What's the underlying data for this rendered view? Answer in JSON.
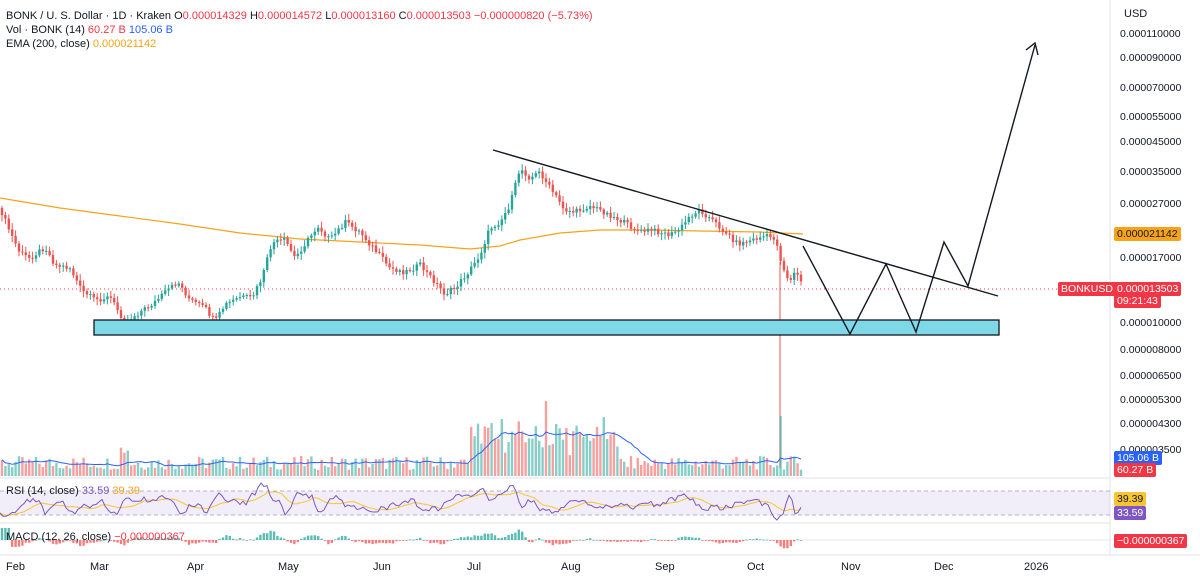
{
  "header": {
    "symbol": "BONK / U. S. Dollar · 1D · Kraken",
    "o_label": "O",
    "o_value": "0.000014329",
    "h_label": "H",
    "h_value": "0.000014572",
    "l_label": "L",
    "l_value": "0.000013160",
    "c_label": "C",
    "c_value": "0.000013503",
    "change": "−0.000000820 (−5.73%)",
    "vol_label": "Vol · BONK (14)",
    "vol_value": "60.27 B",
    "vol_ma_value": "105.06 B",
    "ema_label": "EMA (200, close)",
    "ema_value": "0.000021142"
  },
  "price_axis": {
    "currency": "USD",
    "labels": [
      "0.000110000",
      "0.000090000",
      "0.000070000",
      "0.000055000",
      "0.000045000",
      "0.000035000",
      "0.000027000",
      "0.000017000",
      "0.000010000",
      "0.000008000",
      "0.000006500",
      "0.000005300",
      "0.000004300",
      "0.000003500"
    ]
  },
  "tags": {
    "ema": "0.000021142",
    "symbol": "BONKUSD",
    "price": "0.000013503",
    "countdown": "09:21:43",
    "vol_ma": "105.06 B",
    "vol": "60.27 B",
    "rsi_ma": "39.39",
    "rsi": "33.59",
    "macd": "−0.000000367"
  },
  "rsi_legend": {
    "label": "RSI (14, close)",
    "value": "33.59",
    "ma_value": "39.39"
  },
  "macd_legend": {
    "label": "MACD (12, 26, close)",
    "value": "−0.000000367"
  },
  "x_axis": [
    "Feb",
    "Mar",
    "Apr",
    "May",
    "Jun",
    "Jul",
    "Aug",
    "Sep",
    "Oct",
    "Nov",
    "Dec",
    "2026"
  ],
  "colors": {
    "up": "#26a69a",
    "down": "#ef5350",
    "ema": "#f7a21b",
    "vol_ma": "#2962ff",
    "rsi": "#7e57c2",
    "support_zone": "#7ed8e6",
    "accent_tag": "#f23645"
  },
  "chart_data": {
    "type": "candlestick",
    "price_scale": "log",
    "series": [
      {
        "name": "BONK / U. S. Dollar",
        "kind": "daily_close_approx",
        "x": [
          "Feb",
          "Mar",
          "Apr",
          "May",
          "Jun",
          "Jul",
          "Aug",
          "Sep",
          "Oct"
        ],
        "values": [
          2.6e-05,
          1.18e-05,
          1.12e-05,
          1.9e-05,
          1.55e-05,
          1.75e-05,
          2.5e-05,
          2.25e-05,
          1.35e-05
        ]
      },
      {
        "name": "EMA (200, close)",
        "last_value": 2.1142e-05
      }
    ],
    "annotations": {
      "support_zone": [
        9.4e-06,
        1.06e-05
      ],
      "descending_trendline": true,
      "projected_path": true
    },
    "rsi": {
      "last": 33.59,
      "ma": 39.39
    },
    "macd": {
      "last": -3.67e-07
    }
  }
}
